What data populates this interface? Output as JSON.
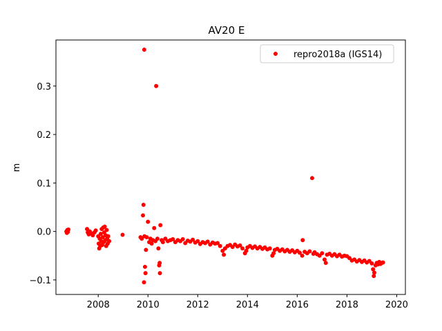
{
  "chart_data": {
    "type": "scatter",
    "title": "AV20 E",
    "xlabel": "",
    "ylabel": "m",
    "xlim": [
      2006.3,
      2020.35
    ],
    "ylim": [
      -0.13,
      0.395
    ],
    "x_ticks": [
      2008,
      2010,
      2012,
      2014,
      2016,
      2018,
      2020
    ],
    "y_ticks": [
      -0.1,
      0.0,
      0.1,
      0.2,
      0.3
    ],
    "y_tick_labels": [
      "−0.1",
      "0.0",
      "0.1",
      "0.2",
      "0.3"
    ],
    "grid": false,
    "legend_position": "top-right",
    "series": [
      {
        "name": "repro2018a (IGS14)",
        "color": "#ff0000",
        "marker": "circle",
        "points": [
          [
            2006.72,
            0.0
          ],
          [
            2006.74,
            -0.003
          ],
          [
            2006.76,
            0.003
          ],
          [
            2006.78,
            -0.001
          ],
          [
            2006.8,
            0.004
          ],
          [
            2007.55,
            0.005
          ],
          [
            2007.58,
            -0.002
          ],
          [
            2007.62,
            -0.006
          ],
          [
            2007.66,
            0.0
          ],
          [
            2007.72,
            -0.004
          ],
          [
            2007.78,
            -0.008
          ],
          [
            2007.85,
            -0.002
          ],
          [
            2007.9,
            0.002
          ],
          [
            2008.0,
            -0.01
          ],
          [
            2008.02,
            -0.025
          ],
          [
            2008.04,
            -0.035
          ],
          [
            2008.06,
            -0.015
          ],
          [
            2008.08,
            -0.03
          ],
          [
            2008.1,
            -0.005
          ],
          [
            2008.12,
            -0.02
          ],
          [
            2008.14,
            0.005
          ],
          [
            2008.16,
            -0.028
          ],
          [
            2008.18,
            -0.012
          ],
          [
            2008.2,
            0.008
          ],
          [
            2008.22,
            -0.022
          ],
          [
            2008.24,
            -0.002
          ],
          [
            2008.26,
            0.01
          ],
          [
            2008.28,
            -0.018
          ],
          [
            2008.3,
            -0.008
          ],
          [
            2008.32,
            -0.03
          ],
          [
            2008.34,
            0.003
          ],
          [
            2008.36,
            -0.015
          ],
          [
            2008.38,
            -0.025
          ],
          [
            2008.4,
            -0.01
          ],
          [
            2008.44,
            -0.02
          ],
          [
            2008.98,
            -0.007
          ],
          [
            2009.7,
            -0.012
          ],
          [
            2009.75,
            -0.015
          ],
          [
            2009.8,
            0.033
          ],
          [
            2009.82,
            0.055
          ],
          [
            2009.84,
            -0.105
          ],
          [
            2009.85,
            0.375
          ],
          [
            2009.86,
            -0.01
          ],
          [
            2009.88,
            -0.073
          ],
          [
            2009.9,
            -0.086
          ],
          [
            2009.92,
            -0.038
          ],
          [
            2009.95,
            -0.012
          ],
          [
            2010.0,
            0.02
          ],
          [
            2010.05,
            -0.022
          ],
          [
            2010.1,
            -0.015
          ],
          [
            2010.15,
            -0.025
          ],
          [
            2010.2,
            -0.018
          ],
          [
            2010.25,
            0.007
          ],
          [
            2010.3,
            -0.02
          ],
          [
            2010.33,
            0.3
          ],
          [
            2010.38,
            -0.015
          ],
          [
            2010.42,
            -0.035
          ],
          [
            2010.45,
            -0.07
          ],
          [
            2010.47,
            -0.065
          ],
          [
            2010.48,
            -0.086
          ],
          [
            2010.5,
            0.013
          ],
          [
            2010.55,
            -0.018
          ],
          [
            2010.6,
            -0.022
          ],
          [
            2010.7,
            -0.015
          ],
          [
            2010.8,
            -0.02
          ],
          [
            2010.9,
            -0.018
          ],
          [
            2011.0,
            -0.016
          ],
          [
            2011.1,
            -0.022
          ],
          [
            2011.2,
            -0.018
          ],
          [
            2011.3,
            -0.02
          ],
          [
            2011.4,
            -0.016
          ],
          [
            2011.5,
            -0.024
          ],
          [
            2011.6,
            -0.019
          ],
          [
            2011.7,
            -0.021
          ],
          [
            2011.8,
            -0.017
          ],
          [
            2011.9,
            -0.023
          ],
          [
            2012.0,
            -0.02
          ],
          [
            2012.1,
            -0.026
          ],
          [
            2012.2,
            -0.022
          ],
          [
            2012.3,
            -0.024
          ],
          [
            2012.4,
            -0.021
          ],
          [
            2012.5,
            -0.027
          ],
          [
            2012.6,
            -0.023
          ],
          [
            2012.7,
            -0.025
          ],
          [
            2012.8,
            -0.024
          ],
          [
            2012.9,
            -0.03
          ],
          [
            2013.0,
            -0.04
          ],
          [
            2013.05,
            -0.048
          ],
          [
            2013.1,
            -0.035
          ],
          [
            2013.2,
            -0.03
          ],
          [
            2013.3,
            -0.028
          ],
          [
            2013.4,
            -0.032
          ],
          [
            2013.5,
            -0.027
          ],
          [
            2013.6,
            -0.031
          ],
          [
            2013.7,
            -0.029
          ],
          [
            2013.8,
            -0.035
          ],
          [
            2013.9,
            -0.045
          ],
          [
            2013.95,
            -0.04
          ],
          [
            2014.0,
            -0.033
          ],
          [
            2014.1,
            -0.03
          ],
          [
            2014.2,
            -0.034
          ],
          [
            2014.3,
            -0.031
          ],
          [
            2014.4,
            -0.035
          ],
          [
            2014.5,
            -0.032
          ],
          [
            2014.6,
            -0.036
          ],
          [
            2014.7,
            -0.033
          ],
          [
            2014.8,
            -0.037
          ],
          [
            2014.9,
            -0.035
          ],
          [
            2015.0,
            -0.05
          ],
          [
            2015.05,
            -0.045
          ],
          [
            2015.1,
            -0.038
          ],
          [
            2015.2,
            -0.036
          ],
          [
            2015.3,
            -0.04
          ],
          [
            2015.4,
            -0.037
          ],
          [
            2015.5,
            -0.041
          ],
          [
            2015.6,
            -0.038
          ],
          [
            2015.7,
            -0.042
          ],
          [
            2015.8,
            -0.039
          ],
          [
            2015.9,
            -0.043
          ],
          [
            2016.0,
            -0.04
          ],
          [
            2016.1,
            -0.044
          ],
          [
            2016.2,
            -0.05
          ],
          [
            2016.22,
            -0.018
          ],
          [
            2016.3,
            -0.042
          ],
          [
            2016.4,
            -0.045
          ],
          [
            2016.5,
            -0.041
          ],
          [
            2016.6,
            0.11
          ],
          [
            2016.65,
            -0.046
          ],
          [
            2016.7,
            -0.043
          ],
          [
            2016.8,
            -0.047
          ],
          [
            2016.9,
            -0.05
          ],
          [
            2017.0,
            -0.045
          ],
          [
            2017.1,
            -0.058
          ],
          [
            2017.15,
            -0.065
          ],
          [
            2017.2,
            -0.048
          ],
          [
            2017.3,
            -0.046
          ],
          [
            2017.4,
            -0.05
          ],
          [
            2017.5,
            -0.047
          ],
          [
            2017.6,
            -0.051
          ],
          [
            2017.7,
            -0.048
          ],
          [
            2017.8,
            -0.052
          ],
          [
            2017.9,
            -0.05
          ],
          [
            2018.0,
            -0.051
          ],
          [
            2018.1,
            -0.055
          ],
          [
            2018.2,
            -0.06
          ],
          [
            2018.3,
            -0.058
          ],
          [
            2018.4,
            -0.062
          ],
          [
            2018.5,
            -0.059
          ],
          [
            2018.6,
            -0.063
          ],
          [
            2018.7,
            -0.06
          ],
          [
            2018.8,
            -0.064
          ],
          [
            2018.9,
            -0.061
          ],
          [
            2019.0,
            -0.066
          ],
          [
            2019.05,
            -0.078
          ],
          [
            2019.08,
            -0.092
          ],
          [
            2019.1,
            -0.085
          ],
          [
            2019.15,
            -0.07
          ],
          [
            2019.2,
            -0.065
          ],
          [
            2019.25,
            -0.068
          ],
          [
            2019.3,
            -0.063
          ],
          [
            2019.35,
            -0.067
          ],
          [
            2019.4,
            -0.065
          ],
          [
            2019.45,
            -0.064
          ]
        ]
      }
    ]
  }
}
